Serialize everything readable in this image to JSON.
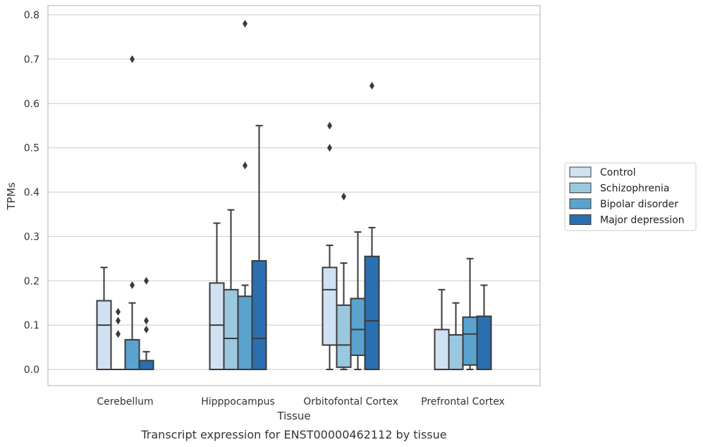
{
  "chart_data": {
    "type": "box",
    "xlabel": "Tissue",
    "ylabel": "TPMs",
    "caption": "Transcript expression for ENST00000462112 by tissue",
    "ylim": [
      -0.04,
      0.82
    ],
    "yticks": [
      "0.0",
      "0.1",
      "0.2",
      "0.3",
      "0.4",
      "0.5",
      "0.6",
      "0.7",
      "0.8"
    ],
    "grid": "horizontal",
    "legend_position": "right",
    "categories": [
      "Cerebellum",
      "Hipppocampus",
      "Orbitofontal Cortex",
      "Prefrontal Cortex"
    ],
    "series": [
      {
        "name": "Control",
        "color": "#d0e1f2",
        "boxes": [
          {
            "q1": 0.0,
            "median": 0.1,
            "q3": 0.155,
            "whisker_low": 0.0,
            "whisker_high": 0.23,
            "outliers": []
          },
          {
            "q1": 0.0,
            "median": 0.1,
            "q3": 0.195,
            "whisker_low": 0.0,
            "whisker_high": 0.33,
            "outliers": []
          },
          {
            "q1": 0.055,
            "median": 0.18,
            "q3": 0.23,
            "whisker_low": 0.0,
            "whisker_high": 0.28,
            "outliers": [
              0.5,
              0.55
            ]
          },
          {
            "q1": 0.0,
            "median": 0.0,
            "q3": 0.09,
            "whisker_low": 0.0,
            "whisker_high": 0.18,
            "outliers": []
          }
        ]
      },
      {
        "name": "Schizophrenia",
        "color": "#9ac8e0",
        "boxes": [
          {
            "q1": 0.0,
            "median": 0.0,
            "q3": 0.0,
            "whisker_low": 0.0,
            "whisker_high": 0.0,
            "outliers": [
              0.08,
              0.11,
              0.13
            ]
          },
          {
            "q1": 0.0,
            "median": 0.07,
            "q3": 0.18,
            "whisker_low": 0.0,
            "whisker_high": 0.36,
            "outliers": []
          },
          {
            "q1": 0.005,
            "median": 0.055,
            "q3": 0.145,
            "whisker_low": 0.0,
            "whisker_high": 0.24,
            "outliers": [
              0.39
            ]
          },
          {
            "q1": 0.0,
            "median": 0.0,
            "q3": 0.078,
            "whisker_low": 0.0,
            "whisker_high": 0.15,
            "outliers": []
          }
        ]
      },
      {
        "name": "Bipolar disorder",
        "color": "#5ba3cf",
        "boxes": [
          {
            "q1": 0.0,
            "median": 0.0,
            "q3": 0.067,
            "whisker_low": 0.0,
            "whisker_high": 0.15,
            "outliers": [
              0.19,
              0.7
            ]
          },
          {
            "q1": 0.0,
            "median": 0.0,
            "q3": 0.165,
            "whisker_low": 0.0,
            "whisker_high": 0.19,
            "outliers": [
              0.46,
              0.78
            ]
          },
          {
            "q1": 0.032,
            "median": 0.09,
            "q3": 0.16,
            "whisker_low": 0.0,
            "whisker_high": 0.31,
            "outliers": []
          },
          {
            "q1": 0.01,
            "median": 0.08,
            "q3": 0.118,
            "whisker_low": 0.0,
            "whisker_high": 0.25,
            "outliers": []
          }
        ]
      },
      {
        "name": "Major depression",
        "color": "#2a6fb0",
        "boxes": [
          {
            "q1": 0.0,
            "median": 0.0,
            "q3": 0.02,
            "whisker_low": 0.0,
            "whisker_high": 0.04,
            "outliers": [
              0.09,
              0.11,
              0.2
            ]
          },
          {
            "q1": 0.0,
            "median": 0.07,
            "q3": 0.245,
            "whisker_low": 0.0,
            "whisker_high": 0.55,
            "outliers": []
          },
          {
            "q1": 0.0,
            "median": 0.11,
            "q3": 0.255,
            "whisker_low": 0.0,
            "whisker_high": 0.32,
            "outliers": [
              0.64
            ]
          },
          {
            "q1": 0.0,
            "median": 0.0,
            "q3": 0.12,
            "whisker_low": 0.0,
            "whisker_high": 0.19,
            "outliers": []
          }
        ]
      }
    ]
  }
}
